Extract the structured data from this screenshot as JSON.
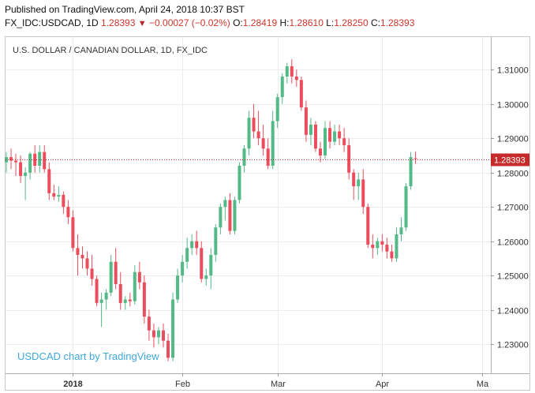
{
  "header": {
    "published": "Published on TradingView.com, April 24, 2018 10:37 BST",
    "symbol_prefix": "FX_IDC:USDCAD, 1D",
    "last": "1.28393",
    "change_arrow": "▼",
    "change": "−0.00027 (−0.02%)",
    "open_label": "O:",
    "open": "1.28419",
    "high_label": "H:",
    "high": "1.28610",
    "low_label": "L:",
    "low": "1.28250",
    "close_label": "C:",
    "close": "1.28393"
  },
  "chart_data": {
    "type": "candlestick",
    "title": "U.S. DOLLAR / CANADIAN DOLLAR, 1D, FX_IDC",
    "watermark": "USDCAD chart by TradingView",
    "last_price_label": "1.28393",
    "last_price": 1.28393,
    "ylim": [
      1.2215,
      1.3195
    ],
    "y_ticks": [
      "1.31000",
      "1.30000",
      "1.29000",
      "1.28000",
      "1.27000",
      "1.26000",
      "1.25000",
      "1.24000",
      "1.23000"
    ],
    "y_tick_values": [
      1.31,
      1.3,
      1.29,
      1.28,
      1.27,
      1.26,
      1.25,
      1.24,
      1.23
    ],
    "x_ticks": [
      {
        "label": "2018",
        "index": 14
      },
      {
        "label": "Feb",
        "index": 37
      },
      {
        "label": "Mar",
        "index": 57
      },
      {
        "label": "Apr",
        "index": 79
      },
      {
        "label": "Ma",
        "index": 100
      }
    ],
    "colors": {
      "up": "#53b987",
      "down": "#eb4d5c",
      "last_line": "#c62b2b"
    },
    "candles": [
      [
        1.283,
        1.286,
        1.28,
        1.2845
      ],
      [
        1.2845,
        1.287,
        1.281,
        1.2835
      ],
      [
        1.2835,
        1.2855,
        1.279,
        1.283
      ],
      [
        1.283,
        1.285,
        1.277,
        1.279
      ],
      [
        1.279,
        1.2815,
        1.272,
        1.28
      ],
      [
        1.28,
        1.286,
        1.278,
        1.2855
      ],
      [
        1.2855,
        1.288,
        1.28,
        1.282
      ],
      [
        1.282,
        1.288,
        1.28,
        1.286
      ],
      [
        1.286,
        1.288,
        1.28,
        1.281
      ],
      [
        1.281,
        1.283,
        1.272,
        1.274
      ],
      [
        1.274,
        1.2765,
        1.272,
        1.273
      ],
      [
        1.273,
        1.276,
        1.2715,
        1.2735
      ],
      [
        1.2735,
        1.2745,
        1.268,
        1.27
      ],
      [
        1.27,
        1.272,
        1.265,
        1.267
      ],
      [
        1.267,
        1.269,
        1.257,
        1.258
      ],
      [
        1.258,
        1.262,
        1.25,
        1.256
      ],
      [
        1.256,
        1.2585,
        1.252,
        1.255
      ],
      [
        1.255,
        1.257,
        1.25,
        1.252
      ],
      [
        1.252,
        1.256,
        1.247,
        1.249
      ],
      [
        1.249,
        1.25,
        1.241,
        1.242
      ],
      [
        1.242,
        1.245,
        1.235,
        1.243
      ],
      [
        1.243,
        1.246,
        1.24,
        1.245
      ],
      [
        1.245,
        1.256,
        1.244,
        1.254
      ],
      [
        1.254,
        1.258,
        1.246,
        1.2475
      ],
      [
        1.2475,
        1.251,
        1.24,
        1.242
      ],
      [
        1.242,
        1.244,
        1.24,
        1.243
      ],
      [
        1.243,
        1.245,
        1.241,
        1.2425
      ],
      [
        1.2425,
        1.253,
        1.2415,
        1.251
      ],
      [
        1.251,
        1.254,
        1.246,
        1.248
      ],
      [
        1.248,
        1.25,
        1.236,
        1.238
      ],
      [
        1.238,
        1.24,
        1.231,
        1.234
      ],
      [
        1.234,
        1.236,
        1.229,
        1.232
      ],
      [
        1.232,
        1.235,
        1.23,
        1.234
      ],
      [
        1.234,
        1.236,
        1.229,
        1.231
      ],
      [
        1.231,
        1.233,
        1.225,
        1.226
      ],
      [
        1.226,
        1.245,
        1.225,
        1.243
      ],
      [
        1.243,
        1.252,
        1.242,
        1.25
      ],
      [
        1.25,
        1.256,
        1.248,
        1.254
      ],
      [
        1.254,
        1.261,
        1.252,
        1.258
      ],
      [
        1.258,
        1.262,
        1.256,
        1.26
      ],
      [
        1.26,
        1.263,
        1.256,
        1.258
      ],
      [
        1.258,
        1.26,
        1.248,
        1.249
      ],
      [
        1.249,
        1.252,
        1.247,
        1.25
      ],
      [
        1.25,
        1.258,
        1.246,
        1.256
      ],
      [
        1.256,
        1.265,
        1.254,
        1.264
      ],
      [
        1.264,
        1.271,
        1.262,
        1.27
      ],
      [
        1.27,
        1.273,
        1.266,
        1.272
      ],
      [
        1.272,
        1.274,
        1.262,
        1.263
      ],
      [
        1.263,
        1.273,
        1.262,
        1.272
      ],
      [
        1.272,
        1.283,
        1.271,
        1.282
      ],
      [
        1.282,
        1.288,
        1.28,
        1.287
      ],
      [
        1.287,
        1.298,
        1.285,
        1.296
      ],
      [
        1.296,
        1.3,
        1.29,
        1.292
      ],
      [
        1.292,
        1.298,
        1.288,
        1.29
      ],
      [
        1.29,
        1.294,
        1.285,
        1.287
      ],
      [
        1.287,
        1.29,
        1.281,
        1.282
      ],
      [
        1.282,
        1.298,
        1.281,
        1.295
      ],
      [
        1.295,
        1.303,
        1.293,
        1.302
      ],
      [
        1.302,
        1.309,
        1.3,
        1.308
      ],
      [
        1.308,
        1.312,
        1.306,
        1.311
      ],
      [
        1.311,
        1.313,
        1.306,
        1.308
      ],
      [
        1.308,
        1.31,
        1.305,
        1.307
      ],
      [
        1.307,
        1.308,
        1.298,
        1.299
      ],
      [
        1.299,
        1.301,
        1.289,
        1.291
      ],
      [
        1.291,
        1.296,
        1.288,
        1.294
      ],
      [
        1.294,
        1.295,
        1.286,
        1.287
      ],
      [
        1.287,
        1.289,
        1.283,
        1.285
      ],
      [
        1.285,
        1.295,
        1.284,
        1.293
      ],
      [
        1.293,
        1.295,
        1.287,
        1.289
      ],
      [
        1.289,
        1.294,
        1.288,
        1.292
      ],
      [
        1.292,
        1.294,
        1.288,
        1.29
      ],
      [
        1.29,
        1.293,
        1.286,
        1.288
      ],
      [
        1.288,
        1.29,
        1.278,
        1.28
      ],
      [
        1.28,
        1.281,
        1.272,
        1.276
      ],
      [
        1.276,
        1.28,
        1.272,
        1.278
      ],
      [
        1.278,
        1.281,
        1.268,
        1.27
      ],
      [
        1.27,
        1.271,
        1.258,
        1.259
      ],
      [
        1.259,
        1.262,
        1.255,
        1.258
      ],
      [
        1.258,
        1.261,
        1.256,
        1.26
      ],
      [
        1.26,
        1.262,
        1.257,
        1.259
      ],
      [
        1.259,
        1.261,
        1.255,
        1.257
      ],
      [
        1.257,
        1.259,
        1.254,
        1.255
      ],
      [
        1.255,
        1.264,
        1.254,
        1.262
      ],
      [
        1.262,
        1.267,
        1.26,
        1.264
      ],
      [
        1.264,
        1.277,
        1.263,
        1.276
      ],
      [
        1.276,
        1.286,
        1.275,
        1.2845
      ],
      [
        1.28419,
        1.2861,
        1.2825,
        1.28393
      ]
    ]
  }
}
